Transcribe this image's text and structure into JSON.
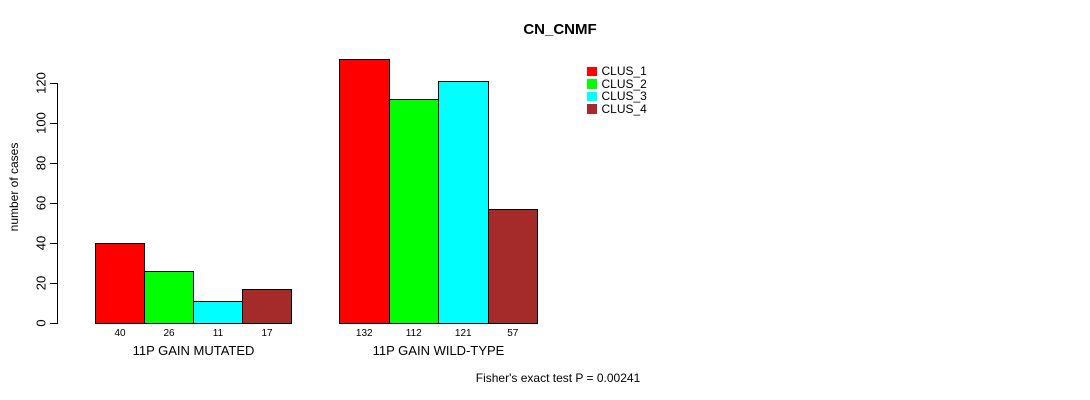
{
  "chart_data": {
    "type": "bar",
    "title": "CN_CNMF",
    "ylabel": "number of cases",
    "annotation": "Fisher's exact test P = 0.00241",
    "categories": [
      "11P GAIN MUTATED",
      "11P GAIN WILD-TYPE"
    ],
    "series": [
      {
        "name": "CLUS_1",
        "color": "#FF0000",
        "values": [
          40,
          132
        ]
      },
      {
        "name": "CLUS_2",
        "color": "#00FF00",
        "values": [
          26,
          112
        ]
      },
      {
        "name": "CLUS_3",
        "color": "#00FFFF",
        "values": [
          11,
          121
        ]
      },
      {
        "name": "CLUS_4",
        "color": "#A52A2A",
        "values": [
          17,
          57
        ]
      }
    ],
    "bar_value_labels": [
      [
        "40",
        "26",
        "11",
        "17"
      ],
      [
        "132",
        "112",
        "121",
        "57"
      ]
    ],
    "yticks": [
      0,
      20,
      40,
      60,
      80,
      100,
      120
    ],
    "ylim": [
      0,
      120
    ],
    "grid": false,
    "legend_position": "top-right",
    "background_color": "#ffffff",
    "axis_color": "#000000"
  }
}
